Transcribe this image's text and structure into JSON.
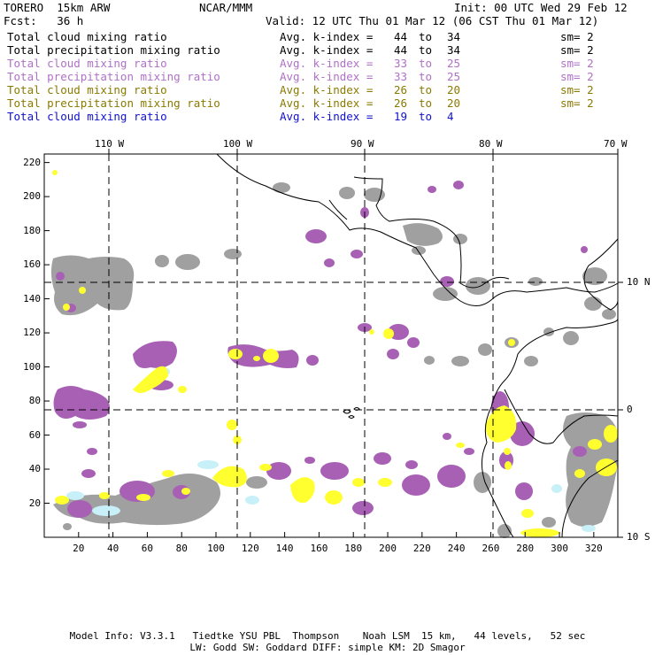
{
  "header": {
    "model": "TORERO  15km ARW",
    "org": "NCAR/MMM",
    "init": "Init: 00 UTC Wed 29 Feb 12",
    "fcst": "Fcst:   36 h",
    "valid": "Valid: 12 UTC Thu 01 Mar 12 (06 CST Thu 01 Mar 12)"
  },
  "legend": [
    {
      "field": "Total cloud mixing ratio",
      "index": "Avg. k-index =",
      "from": "44",
      "to_word": "to",
      "to": "34",
      "sm": "sm= 2",
      "color": "#000000"
    },
    {
      "field": "Total precipitation mixing ratio",
      "index": "Avg. k-index =",
      "from": "44",
      "to_word": "to",
      "to": "34",
      "sm": "sm= 2",
      "color": "#000000"
    },
    {
      "field": "Total cloud mixing ratio",
      "index": "Avg. k-index =",
      "from": "33",
      "to_word": "to",
      "to": "25",
      "sm": "sm= 2",
      "color": "#b070c8"
    },
    {
      "field": "Total precipitation mixing ratio",
      "index": "Avg. k-index =",
      "from": "33",
      "to_word": "to",
      "to": "25",
      "sm": "sm= 2",
      "color": "#b070c8"
    },
    {
      "field": "Total cloud mixing ratio",
      "index": "Avg. k-index =",
      "from": "26",
      "to_word": "to",
      "to": "20",
      "sm": "sm= 2",
      "color": "#8a7a00"
    },
    {
      "field": "Total precipitation mixing ratio",
      "index": "Avg. k-index =",
      "from": "26",
      "to_word": "to",
      "to": "20",
      "sm": "sm= 2",
      "color": "#8a7a00"
    },
    {
      "field": "Total cloud mixing ratio",
      "index": "Avg. k-index =",
      "from": "19",
      "to_word": "to",
      "to": "4",
      "sm": "",
      "color": "#1010d0"
    }
  ],
  "axes": {
    "lon_labels": [
      "110 W",
      "100 W",
      "90 W",
      "80 W",
      "70 W"
    ],
    "lat_labels": [
      "10 N",
      "0",
      "10 S"
    ],
    "x_ticks": [
      "20",
      "40",
      "60",
      "80",
      "100",
      "120",
      "140",
      "160",
      "180",
      "200",
      "220",
      "240",
      "260",
      "280",
      "300",
      "320"
    ],
    "y_ticks": [
      "20",
      "40",
      "60",
      "80",
      "100",
      "120",
      "140",
      "160",
      "180",
      "200",
      "220"
    ]
  },
  "colors": {
    "gray": "#a0a0a0",
    "purple": "#a860b4",
    "yellow": "#ffff30",
    "lightblue": "#c8f0f8",
    "line": "#000000"
  },
  "footer": {
    "line1": "Model Info: V3.3.1   Tiedtke YSU PBL  Thompson    Noah LSM  15 km,   44 levels,   52 sec",
    "line2": "LW: Godd SW: Goddard DIFF: simple KM: 2D Smagor"
  }
}
